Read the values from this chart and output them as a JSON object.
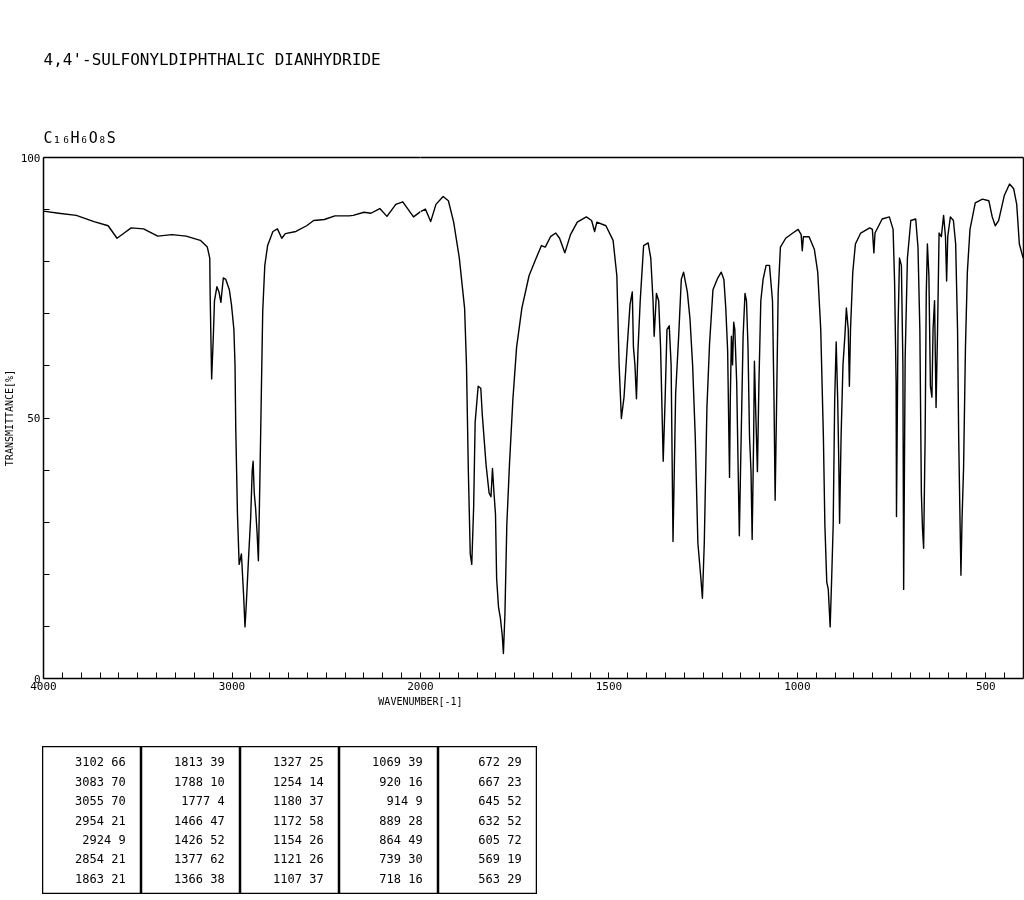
{
  "chart_data": [
    {
      "type": "line",
      "title": "4,4'-SULFONYLDIPHTHALIC DIANHYDRIDE",
      "subtitle": "C₁₆H₆O₈S",
      "ylabel": "TRANSMITTANCE[%]",
      "xlim": [
        4000,
        2000
      ],
      "ylim": [
        0,
        100
      ],
      "xticks": [
        4000,
        {
          "value": 3900,
          "label": null
        },
        {
          "value": 3800,
          "label": null
        },
        {
          "value": 3700,
          "label": null
        },
        {
          "value": 3600,
          "label": null
        },
        {
          "value": 3500,
          "label": null
        },
        {
          "value": 3400,
          "label": null
        },
        {
          "value": 3300,
          "label": null
        },
        {
          "value": 3200,
          "label": null
        },
        {
          "value": 3100,
          "label": null
        },
        3000,
        {
          "value": 2900,
          "label": null
        },
        {
          "value": 2800,
          "label": null
        },
        {
          "value": 2700,
          "label": null
        },
        {
          "value": 2600,
          "label": null
        },
        {
          "value": 2500,
          "label": null
        },
        {
          "value": 2400,
          "label": null
        },
        {
          "value": 2300,
          "label": null
        },
        {
          "value": 2200,
          "label": null
        },
        {
          "value": 2100,
          "label": null
        },
        2000
      ],
      "yticks": [
        0,
        {
          "value": 10,
          "label": null
        },
        {
          "value": 20,
          "label": null
        },
        {
          "value": 30,
          "label": null
        },
        {
          "value": 40,
          "label": null
        },
        50,
        {
          "value": 60,
          "label": null
        },
        {
          "value": 70,
          "label": null
        },
        {
          "value": 80,
          "label": null
        },
        {
          "value": 90,
          "label": null
        },
        100
      ],
      "grid": false,
      "marker": "none",
      "line_style": "solid",
      "x": [
        4000,
        3920,
        3826,
        3732,
        3657,
        3610,
        3572,
        3535,
        3469,
        3394,
        3319,
        3243,
        3168,
        3131,
        3118,
        3116,
        3108,
        3099,
        3093,
        3080,
        3069,
        3059,
        3046,
        3033,
        3014,
        3003,
        2990,
        2984,
        2980,
        2971,
        2962,
        2950,
        2939,
        2931,
        2924,
        2912,
        2901,
        2893,
        2888,
        2882,
        2875,
        2867,
        2860,
        2852,
        2845,
        2837,
        2826,
        2811,
        2783,
        2759,
        2736,
        2717,
        2661,
        2604,
        2567,
        2510,
        2454,
        2432,
        2379,
        2357,
        2300,
        2263,
        2216,
        2178,
        2131,
        2094,
        2037,
        2000
      ],
      "series": [
        {
          "color": "#000000",
          "values": [
            89.7,
            89.3,
            88.9,
            87.7,
            86.9,
            84.5,
            85.5,
            86.5,
            86.3,
            84.9,
            85.2,
            84.9,
            84.1,
            82.8,
            80.7,
            73.9,
            57.5,
            65.7,
            72.5,
            75.2,
            74.2,
            72.2,
            76.9,
            76.6,
            74.6,
            71.8,
            67.0,
            60.2,
            47.9,
            31.5,
            21.9,
            23.9,
            16.4,
            9.9,
            14.4,
            23.3,
            30.8,
            39.7,
            41.7,
            35.6,
            32.8,
            28.0,
            22.6,
            38.3,
            53.4,
            70.5,
            79.3,
            83.1,
            85.8,
            86.3,
            84.5,
            85.4,
            85.8,
            86.9,
            87.9,
            88.1,
            88.8,
            88.8,
            88.8,
            88.9,
            89.5,
            89.3,
            90.2,
            88.7,
            91.0,
            91.5,
            88.6,
            89.6
          ]
        }
      ]
    },
    {
      "type": "line",
      "xlabel": "WAVENUMBER[-1]",
      "xlim": [
        2000,
        400
      ],
      "ylim": [
        0,
        100
      ],
      "tick_labels": "x",
      "xticks": [
        {
          "value": 1950,
          "label": null
        },
        {
          "value": 1900,
          "label": null
        },
        {
          "value": 1850,
          "label": null
        },
        {
          "value": 1800,
          "label": null
        },
        {
          "value": 1750,
          "label": null
        },
        {
          "value": 1700,
          "label": null
        },
        {
          "value": 1650,
          "label": null
        },
        {
          "value": 1600,
          "label": null
        },
        {
          "value": 1550,
          "label": null
        },
        1500,
        {
          "value": 1450,
          "label": null
        },
        {
          "value": 1400,
          "label": null
        },
        {
          "value": 1350,
          "label": null
        },
        {
          "value": 1300,
          "label": null
        },
        {
          "value": 1250,
          "label": null
        },
        {
          "value": 1200,
          "label": null
        },
        {
          "value": 1150,
          "label": null
        },
        {
          "value": 1100,
          "label": null
        },
        {
          "value": 1050,
          "label": null
        },
        1000,
        {
          "value": 950,
          "label": null
        },
        {
          "value": 900,
          "label": null
        },
        {
          "value": 850,
          "label": null
        },
        {
          "value": 800,
          "label": null
        },
        {
          "value": 750,
          "label": null
        },
        {
          "value": 700,
          "label": null
        },
        {
          "value": 650,
          "label": null
        },
        {
          "value": 600,
          "label": null
        },
        {
          "value": 550,
          "label": null
        },
        500,
        {
          "value": 450,
          "label": null
        }
      ],
      "grid": false,
      "marker": "none",
      "line_style": "solid",
      "x": [
        2000,
        1987,
        1973,
        1959,
        1940,
        1926,
        1912,
        1897,
        1883,
        1878,
        1873,
        1868,
        1864,
        1859,
        1855,
        1847,
        1840,
        1836,
        1826,
        1818,
        1813,
        1809,
        1805,
        1801,
        1798,
        1793,
        1788,
        1783,
        1780,
        1776,
        1771,
        1764,
        1755,
        1745,
        1731,
        1712,
        1693,
        1679,
        1669,
        1655,
        1641,
        1631,
        1617,
        1602,
        1584,
        1560,
        1546,
        1538,
        1532,
        1508,
        1489,
        1479,
        1473,
        1467,
        1460,
        1451,
        1444,
        1438,
        1435,
        1431,
        1427,
        1423,
        1417,
        1408,
        1396,
        1389,
        1383,
        1380,
        1374,
        1368,
        1363,
        1356,
        1351,
        1346,
        1340,
        1335,
        1330,
        1323,
        1315,
        1308,
        1302,
        1292,
        1285,
        1278,
        1271,
        1264,
        1256,
        1252,
        1247,
        1240,
        1233,
        1224,
        1211,
        1202,
        1195,
        1190,
        1185,
        1182,
        1180,
        1178,
        1175,
        1172,
        1169,
        1166,
        1161,
        1157,
        1154,
        1150,
        1144,
        1139,
        1135,
        1131,
        1127,
        1123,
        1120,
        1116,
        1114,
        1110,
        1106,
        1102,
        1097,
        1091,
        1083,
        1074,
        1066,
        1062,
        1059,
        1055,
        1051,
        1045,
        1031,
        1012,
        998,
        990,
        987,
        984,
        969,
        955,
        946,
        938,
        931,
        927,
        922,
        918,
        913,
        909,
        905,
        901,
        897,
        893,
        890,
        888,
        884,
        879,
        874,
        870,
        865,
        862,
        859,
        853,
        846,
        832,
        808,
        801,
        797,
        794,
        775,
        756,
        746,
        742,
        738,
        737,
        733,
        729,
        724,
        720,
        718,
        714,
        708,
        699,
        686,
        680,
        675,
        671,
        668,
        665,
        661,
        658,
        655,
        651,
        647,
        643,
        640,
        636,
        632,
        628,
        624,
        618,
        612,
        607,
        604,
        601,
        594,
        586,
        580,
        575,
        572,
        569,
        566,
        563,
        559,
        554,
        549,
        542,
        528,
        509,
        492,
        483,
        475,
        466,
        451,
        437,
        426,
        418,
        411,
        401
      ],
      "series": [
        {
          "color": "#000000",
          "values": [
            89.6,
            90.1,
            87.7,
            91.0,
            92.5,
            91.7,
            87.6,
            80.7,
            71.1,
            60.2,
            39.7,
            23.9,
            21.9,
            32.8,
            49.2,
            56.1,
            55.7,
            50.6,
            41.0,
            35.6,
            34.9,
            40.3,
            35.6,
            31.5,
            19.2,
            13.7,
            11.6,
            8.2,
            4.8,
            12.3,
            29.4,
            41.0,
            53.4,
            63.6,
            71.1,
            77.3,
            80.7,
            83.1,
            82.8,
            84.8,
            85.5,
            84.5,
            81.7,
            85.2,
            87.6,
            88.6,
            87.9,
            85.8,
            87.6,
            86.9,
            84.1,
            77.3,
            60.2,
            49.9,
            54.0,
            64.3,
            71.8,
            74.2,
            63.6,
            60.2,
            53.7,
            62.9,
            72.5,
            83.1,
            83.6,
            80.7,
            72.5,
            65.7,
            73.9,
            72.5,
            63.6,
            41.7,
            53.4,
            67.0,
            67.7,
            60.2,
            26.3,
            54.7,
            65.7,
            76.6,
            78.0,
            74.2,
            69.1,
            60.2,
            46.5,
            26.0,
            19.2,
            15.4,
            26.0,
            52.0,
            64.3,
            74.6,
            76.9,
            78.0,
            76.6,
            71.1,
            62.9,
            47.9,
            38.6,
            53.4,
            65.7,
            60.2,
            68.4,
            67.0,
            56.8,
            39.7,
            27.4,
            43.1,
            65.7,
            73.9,
            72.5,
            63.6,
            46.5,
            39.7,
            26.7,
            46.5,
            60.9,
            49.9,
            39.7,
            56.8,
            72.5,
            76.6,
            79.3,
            79.3,
            72.5,
            53.4,
            34.2,
            53.4,
            73.9,
            82.8,
            84.5,
            85.5,
            86.2,
            85.2,
            82.1,
            84.8,
            84.8,
            82.4,
            78.0,
            67.0,
            46.5,
            29.4,
            18.5,
            17.1,
            9.9,
            19.2,
            29.4,
            53.4,
            64.6,
            53.4,
            41.0,
            29.8,
            46.5,
            60.2,
            65.7,
            71.1,
            67.0,
            56.1,
            67.0,
            78.0,
            83.4,
            85.5,
            86.5,
            86.2,
            81.7,
            85.5,
            88.2,
            88.6,
            86.2,
            75.9,
            56.8,
            31.1,
            67.0,
            80.7,
            79.3,
            60.2,
            17.1,
            61.6,
            80.7,
            87.9,
            88.2,
            82.8,
            67.0,
            35.6,
            28.7,
            25.0,
            46.5,
            73.9,
            83.4,
            77.3,
            56.1,
            54.0,
            67.0,
            72.5,
            52.0,
            67.0,
            85.5,
            84.8,
            88.9,
            84.8,
            76.3,
            84.8,
            88.6,
            87.9,
            83.4,
            67.0,
            46.5,
            32.8,
            19.8,
            30.8,
            40.4,
            63.6,
            78.0,
            86.2,
            91.3,
            92.0,
            91.7,
            88.6,
            86.9,
            87.9,
            92.7,
            94.9,
            94.0,
            91.0,
            83.4,
            80.7
          ]
        }
      ]
    },
    {
      "type": "other",
      "annotations": [
        "3102 66",
        "3083 70",
        "3055 70",
        "2954 21",
        "2924 9",
        "2854 21",
        "1863 21",
        "1813 39",
        "1788 10",
        "1777 4",
        "1466 47",
        "1426 52",
        "1377 62",
        "1366 38",
        "1327 25",
        "1254 14",
        "1180 37",
        "1172 58",
        "1154 26",
        "1121 26",
        "1107 37",
        "1069 39",
        "920 16",
        "914 9",
        "889 28",
        "864 49",
        "739 30",
        "718 16",
        "672 29",
        "667 23",
        "645 52",
        "632 52",
        "605 72",
        "569 19",
        "563 29"
      ]
    }
  ]
}
